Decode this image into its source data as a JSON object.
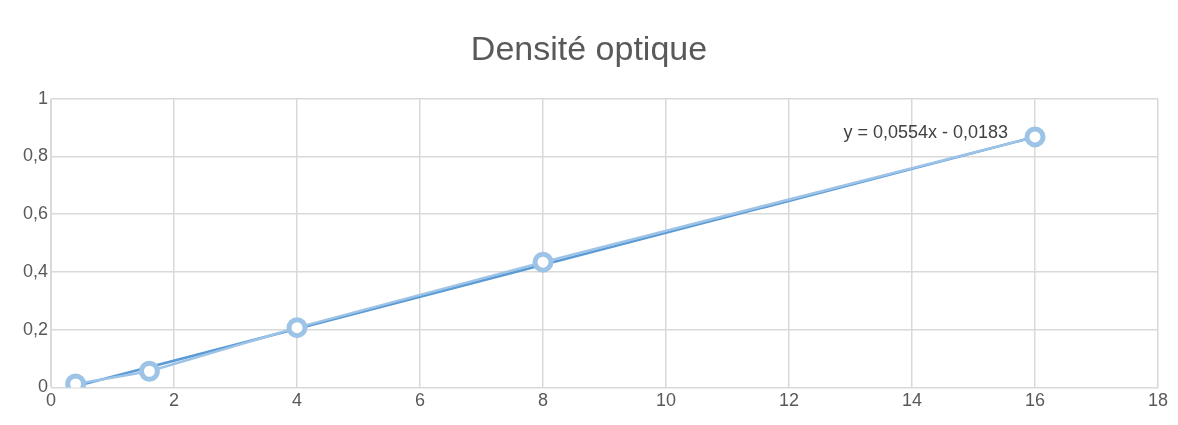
{
  "chart_data": {
    "type": "line",
    "title": "Densité optique",
    "series": [
      {
        "color": "#9dc3e6",
        "x": [
          0.4,
          1.6,
          4,
          8,
          16
        ],
        "values": [
          0.012,
          0.056,
          0.207,
          0.434,
          0.868
        ],
        "marker": "circle"
      },
      {
        "color": "#5b9bd5",
        "x": [
          0.4,
          16
        ],
        "values": [
          0.004,
          0.868
        ],
        "marker": "none"
      }
    ],
    "xlim": [
      0,
      18
    ],
    "xticks": [
      0,
      2,
      4,
      6,
      8,
      10,
      12,
      14,
      16,
      18
    ],
    "ylim": [
      0,
      1
    ],
    "yticks": [
      0,
      {
        "value": 0.2,
        "label": "0,2"
      },
      {
        "value": 0.4,
        "label": "0,4"
      },
      {
        "value": 0.6,
        "label": "0,6"
      },
      {
        "value": 0.8,
        "label": "0,8"
      },
      1
    ],
    "grid": true,
    "legend": false,
    "annotations": [
      "y = 0,0554x - 0,0183"
    ]
  }
}
